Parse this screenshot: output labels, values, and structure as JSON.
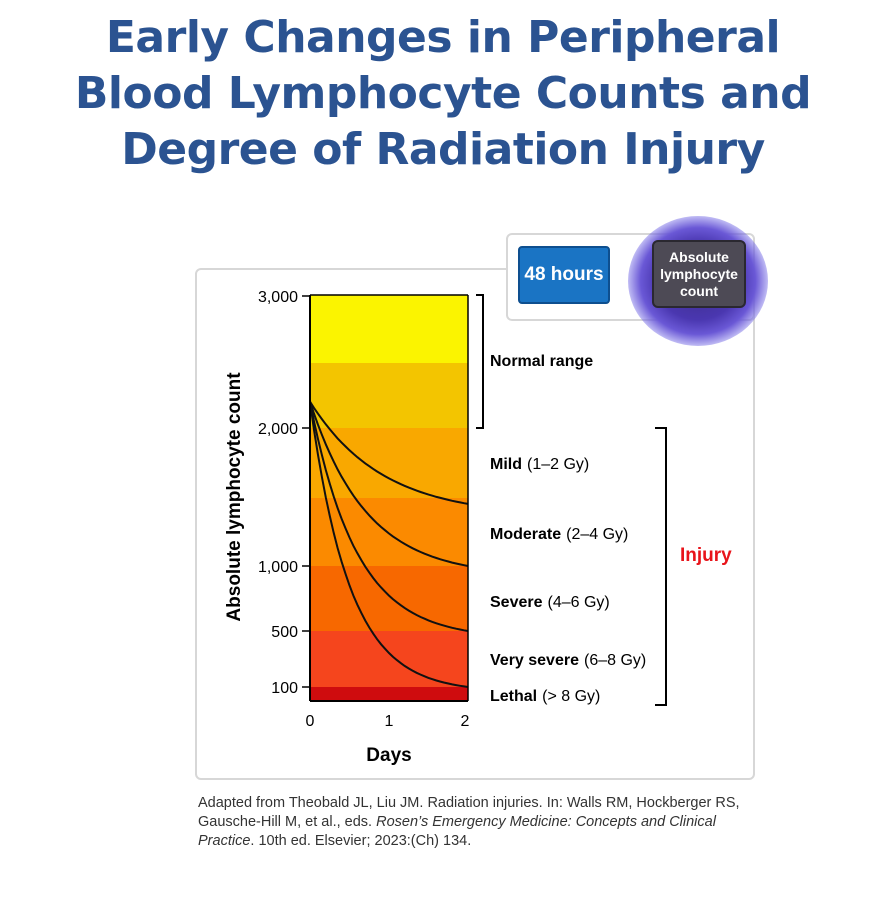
{
  "title_lines": [
    "Early Changes in Peripheral",
    "Blood Lymphocyte Counts and",
    "Degree of Radiation Injury"
  ],
  "legend": {
    "hours": "48 hours",
    "absolute_count": "Absolute lymphocyte count"
  },
  "colors": {
    "title": "#2b5391",
    "injury": "#e8141a"
  },
  "chart_data": {
    "type": "line",
    "xlabel": "Days",
    "ylabel": "Absolute lymphocyte count",
    "x_ticks": [
      "0",
      "1",
      "2"
    ],
    "y_ticks": [
      "3,000",
      "2,000",
      "1,000",
      "500",
      "100"
    ],
    "xlim": [
      0,
      2
    ],
    "start_value": 2200,
    "series": [
      {
        "label": "Mild",
        "dose": "(1–2 Gy)",
        "end_value": 1450
      },
      {
        "label": "Moderate",
        "dose": "(2–4 Gy)",
        "end_value": 1000
      },
      {
        "label": "Severe",
        "dose": "(4–6 Gy)",
        "end_value": 500
      },
      {
        "label": "Very severe",
        "dose": "(6–8 Gy)",
        "end_value": 100
      }
    ],
    "lethal": {
      "label": "Lethal",
      "dose": "(> 8 Gy)"
    },
    "normal_range_label": "Normal range",
    "injury_label": "Injury"
  },
  "caption": {
    "part1": "Adapted from Theobald JL, Liu JM. Radiation injuries. In: Walls RM, Hockberger RS, Gausche-Hill M, et al., eds. ",
    "italic1": "Rosen’s Emergency Medicine: Concepts and Clinical Practice",
    "part2": ". 10th ed. Elsevier; 2023:(Ch) 134."
  }
}
